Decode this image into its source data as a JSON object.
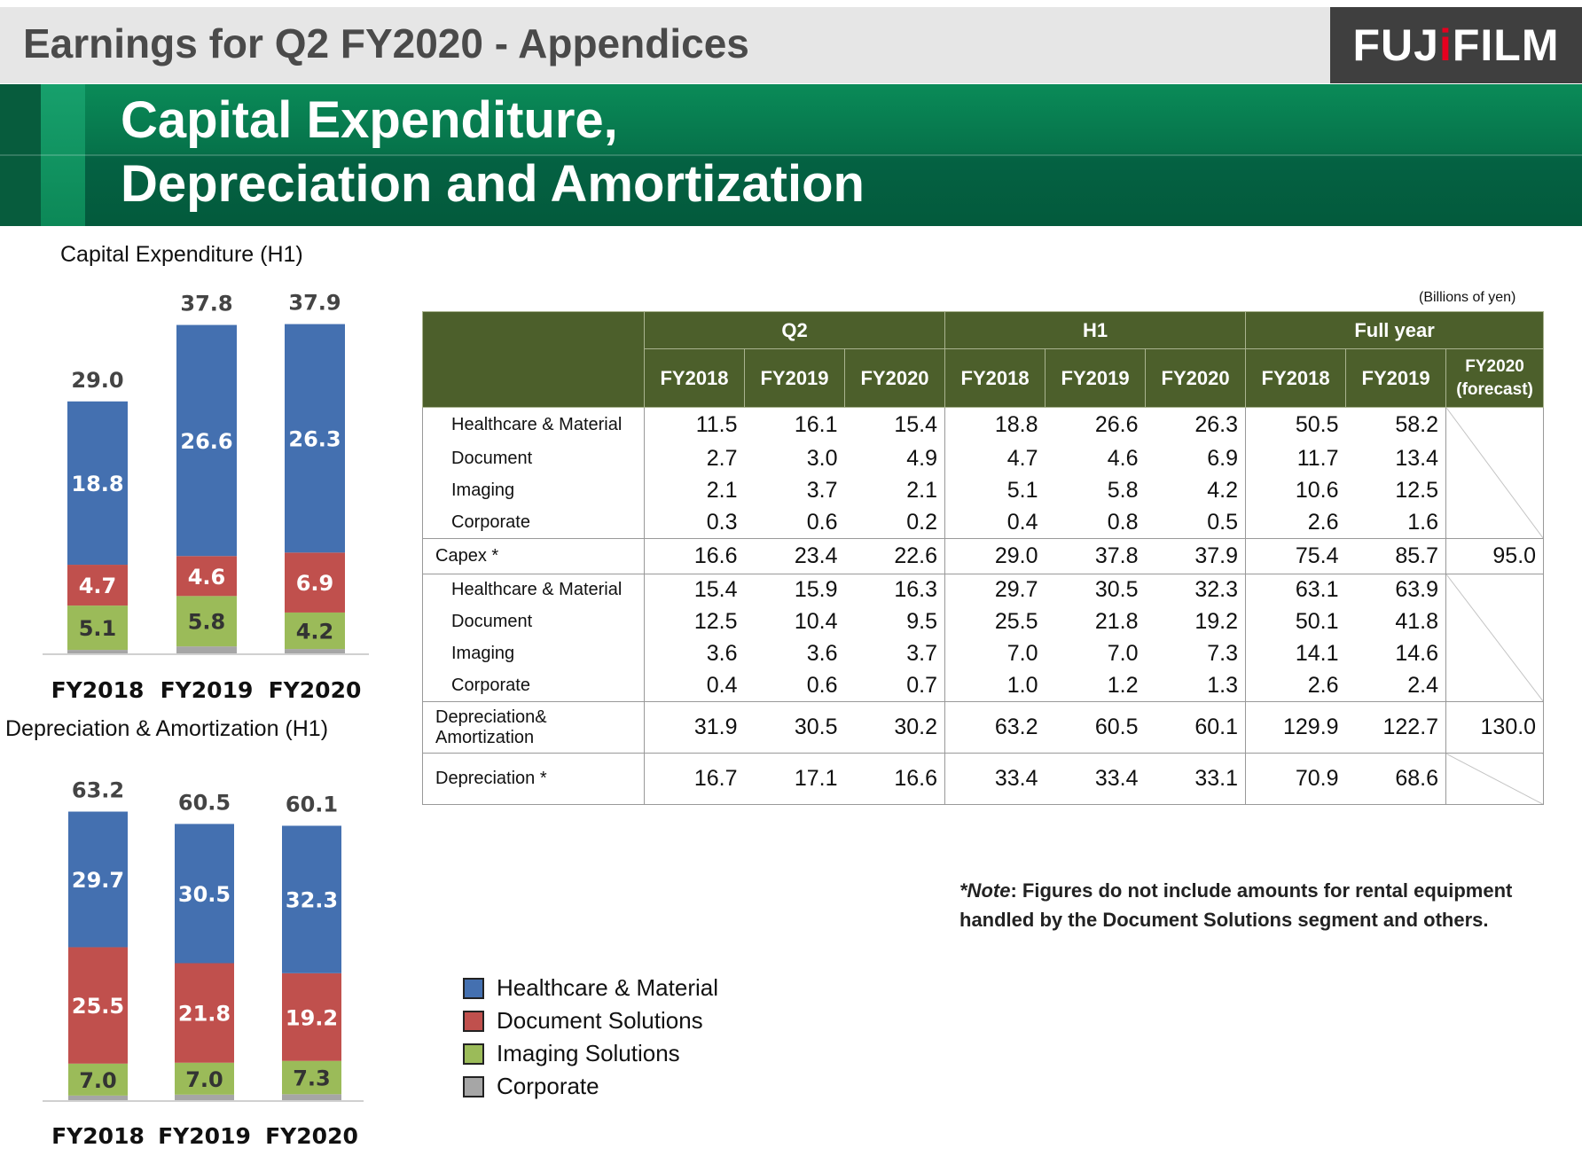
{
  "header": {
    "title": "Earnings for Q2 FY2020 - Appendices",
    "logo_pre": "FUJ",
    "logo_dot": "i",
    "logo_post": "FILM"
  },
  "banner": {
    "line1": "Capital Expenditure,",
    "line2": "Depreciation and Amortization"
  },
  "colors": {
    "healthcare": "#4470b0",
    "document": "#c0504d",
    "imaging": "#9bbb59",
    "corporate": "#a6a6a6"
  },
  "chart_data": [
    {
      "type": "bar",
      "title": "Capital Expenditure (H1)",
      "categories": [
        "FY2018",
        "FY2019",
        "FY2020"
      ],
      "series": [
        {
          "name": "Corporate",
          "values": [
            0.4,
            0.8,
            0.5
          ]
        },
        {
          "name": "Imaging Solutions",
          "values": [
            5.1,
            5.8,
            4.2
          ]
        },
        {
          "name": "Document Solutions",
          "values": [
            4.7,
            4.6,
            6.9
          ]
        },
        {
          "name": "Healthcare & Material",
          "values": [
            18.8,
            26.6,
            26.3
          ]
        }
      ],
      "totals": [
        "29.0",
        "37.8",
        "37.9"
      ],
      "ylim": [
        0,
        40
      ]
    },
    {
      "type": "bar",
      "title": "Depreciation & Amortization (H1)",
      "categories": [
        "FY2018",
        "FY2019",
        "FY2020"
      ],
      "series": [
        {
          "name": "Corporate",
          "values": [
            1.0,
            1.2,
            1.3
          ]
        },
        {
          "name": "Imaging Solutions",
          "values": [
            7.0,
            7.0,
            7.3
          ]
        },
        {
          "name": "Document Solutions",
          "values": [
            25.5,
            21.8,
            19.2
          ]
        },
        {
          "name": "Healthcare & Material",
          "values": [
            29.7,
            30.5,
            32.3
          ]
        }
      ],
      "totals": [
        "63.2",
        "60.5",
        "60.1"
      ],
      "ylim": [
        0,
        65
      ]
    }
  ],
  "table": {
    "units": "(Billions of yen)",
    "groups": [
      "Q2",
      "H1",
      "Full year"
    ],
    "subheaders": [
      "FY2018",
      "FY2019",
      "FY2020",
      "FY2018",
      "FY2019",
      "FY2020",
      "FY2018",
      "FY2019"
    ],
    "forecast_line1": "FY2020",
    "forecast_line2": "(forecast)",
    "capex_rows": [
      {
        "label": "Healthcare & Material",
        "values": [
          "11.5",
          "16.1",
          "15.4",
          "18.8",
          "26.6",
          "26.3",
          "50.5",
          "58.2"
        ]
      },
      {
        "label": "Document",
        "values": [
          "2.7",
          "3.0",
          "4.9",
          "4.7",
          "4.6",
          "6.9",
          "11.7",
          "13.4"
        ]
      },
      {
        "label": "Imaging",
        "values": [
          "2.1",
          "3.7",
          "2.1",
          "5.1",
          "5.8",
          "4.2",
          "10.6",
          "12.5"
        ]
      },
      {
        "label": "Corporate",
        "values": [
          "0.3",
          "0.6",
          "0.2",
          "0.4",
          "0.8",
          "0.5",
          "2.6",
          "1.6"
        ]
      }
    ],
    "capex_total": {
      "label": "Capex *",
      "values": [
        "16.6",
        "23.4",
        "22.6",
        "29.0",
        "37.8",
        "37.9",
        "75.4",
        "85.7",
        "95.0"
      ]
    },
    "da_rows": [
      {
        "label": "Healthcare & Material",
        "values": [
          "15.4",
          "15.9",
          "16.3",
          "29.7",
          "30.5",
          "32.3",
          "63.1",
          "63.9"
        ]
      },
      {
        "label": "Document",
        "values": [
          "12.5",
          "10.4",
          "9.5",
          "25.5",
          "21.8",
          "19.2",
          "50.1",
          "41.8"
        ]
      },
      {
        "label": "Imaging",
        "values": [
          "3.6",
          "3.6",
          "3.7",
          "7.0",
          "7.0",
          "7.3",
          "14.1",
          "14.6"
        ]
      },
      {
        "label": "Corporate",
        "values": [
          "0.4",
          "0.6",
          "0.7",
          "1.0",
          "1.2",
          "1.3",
          "2.6",
          "2.4"
        ]
      }
    ],
    "da_total": {
      "label_line1": "Depreciation&",
      "label_line2": "Amortization",
      "values": [
        "31.9",
        "30.5",
        "30.2",
        "63.2",
        "60.5",
        "60.1",
        "129.9",
        "122.7",
        "130.0"
      ]
    },
    "dep": {
      "label": "Depreciation *",
      "values": [
        "16.7",
        "17.1",
        "16.6",
        "33.4",
        "33.4",
        "33.1",
        "70.9",
        "68.6"
      ]
    }
  },
  "note": {
    "prefix": "*Note",
    "line1": ": Figures do not include amounts for rental equipment",
    "line2": "handled by the Document Solutions segment and others."
  },
  "legend": [
    "Healthcare & Material",
    "Document Solutions",
    "Imaging Solutions",
    "Corporate"
  ]
}
